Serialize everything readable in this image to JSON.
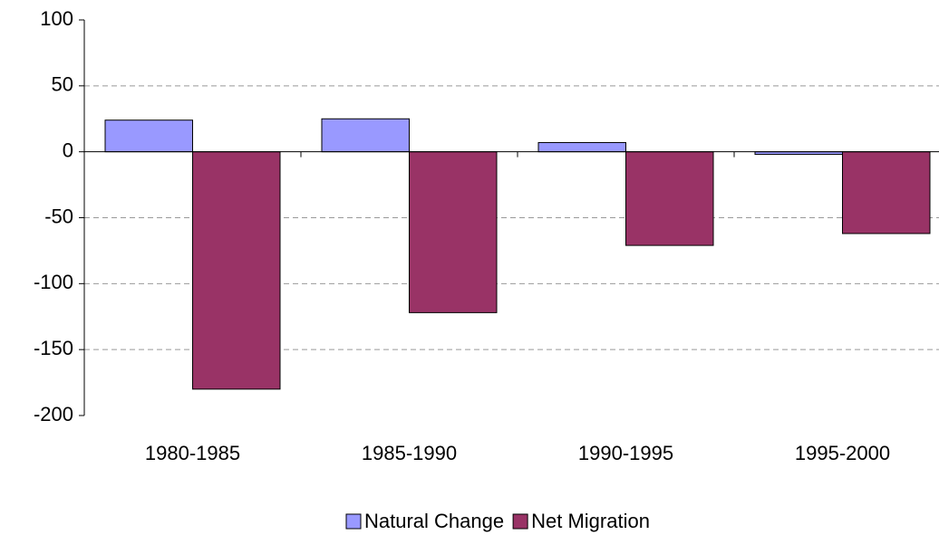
{
  "chart_data": {
    "type": "bar",
    "categories": [
      "1980-1985",
      "1985-1990",
      "1990-1995",
      "1995-2000"
    ],
    "series": [
      {
        "name": "Natural Change",
        "color": "#9999ff",
        "values": [
          24,
          25,
          7,
          -2
        ]
      },
      {
        "name": "Net Migration",
        "color": "#993366",
        "values": [
          -180,
          -122,
          -71,
          -62
        ]
      }
    ],
    "ylim": [
      -200,
      100
    ],
    "yticks": [
      -200,
      -150,
      -100,
      -50,
      0,
      50,
      100
    ],
    "grid": true
  }
}
